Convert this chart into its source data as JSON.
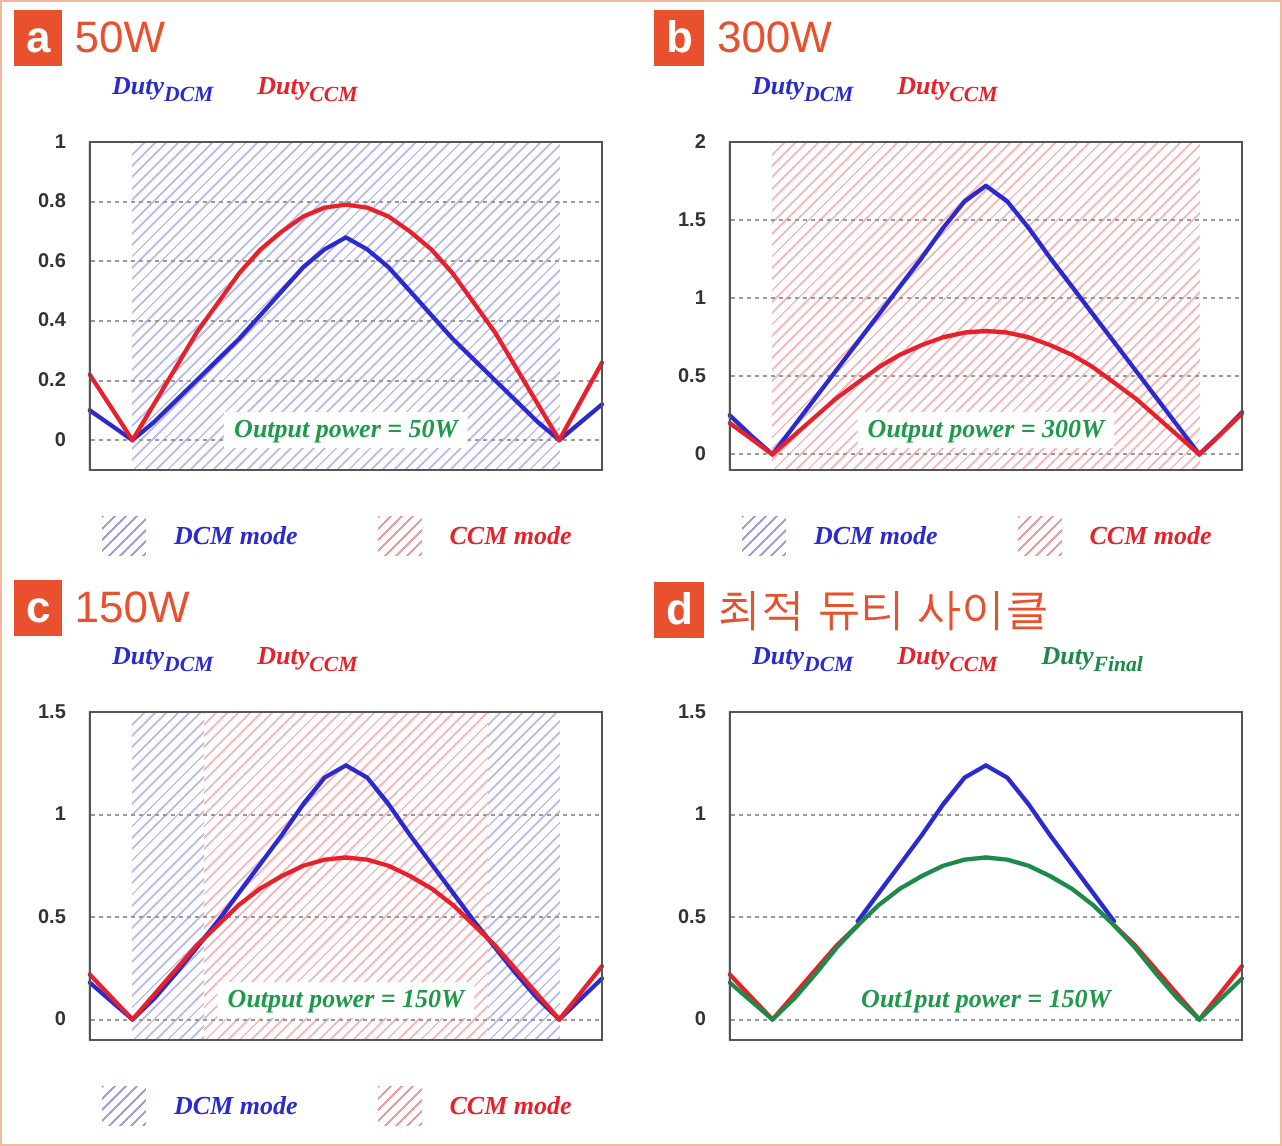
{
  "chart_data": [
    {
      "type": "line",
      "title": "a 50W",
      "categories": [
        null,
        null,
        null,
        null,
        null,
        null,
        null,
        null,
        null,
        null,
        null,
        null,
        null,
        null,
        null,
        null,
        null,
        null,
        null,
        null,
        null,
        null,
        null,
        null,
        null
      ],
      "ylim": [
        -0.1,
        1
      ],
      "yticks": [
        0,
        0.2,
        0.4,
        0.6,
        0.8,
        1
      ],
      "tick_labels": "y",
      "grid": "y",
      "marker": "none",
      "line_style": "solid",
      "series": [
        {
          "name": "Duty$_{DCM}$",
          "color": "#2a2ad0",
          "values": [
            0.1,
            0.05,
            0,
            0.06,
            0.13,
            0.2,
            0.27,
            0.34,
            0.42,
            0.5,
            0.58,
            0.64,
            0.68,
            0.64,
            0.58,
            0.5,
            0.42,
            0.34,
            0.27,
            0.2,
            0.13,
            0.06,
            0,
            0.06,
            0.12
          ]
        },
        {
          "name": "Duty$_{CCM}$",
          "color": "#e8202a",
          "values": [
            0.22,
            0.11,
            0,
            0.12,
            0.24,
            0.36,
            0.46,
            0.56,
            0.64,
            0.7,
            0.75,
            0.78,
            0.79,
            0.78,
            0.75,
            0.7,
            0.64,
            0.56,
            0.46,
            0.36,
            0.24,
            0.12,
            0,
            0.13,
            0.26
          ]
        }
      ],
      "annotations": [
        "Output power = 50W",
        "DCM mode",
        "CCM mode"
      ]
    },
    {
      "type": "line",
      "title": "b 300W",
      "categories": [
        null,
        null,
        null,
        null,
        null,
        null,
        null,
        null,
        null,
        null,
        null,
        null,
        null,
        null,
        null,
        null,
        null,
        null,
        null,
        null,
        null,
        null,
        null,
        null,
        null
      ],
      "ylim": [
        -0.1,
        2
      ],
      "yticks": [
        0,
        0.5,
        1,
        1.5,
        2
      ],
      "tick_labels": "y",
      "grid": "y",
      "marker": "none",
      "line_style": "solid",
      "series": [
        {
          "name": "Duty$_{DCM}$",
          "color": "#2a2ad0",
          "values": [
            0.25,
            0.12,
            0,
            0.18,
            0.36,
            0.54,
            0.72,
            0.9,
            1.08,
            1.26,
            1.45,
            1.62,
            1.72,
            1.62,
            1.45,
            1.26,
            1.08,
            0.9,
            0.72,
            0.54,
            0.36,
            0.18,
            0,
            0.13,
            0.27
          ]
        },
        {
          "name": "Duty$_{CCM}$",
          "color": "#e8202a",
          "values": [
            0.2,
            0.1,
            0,
            0.12,
            0.24,
            0.36,
            0.46,
            0.56,
            0.64,
            0.7,
            0.75,
            0.78,
            0.79,
            0.78,
            0.75,
            0.7,
            0.64,
            0.56,
            0.46,
            0.36,
            0.24,
            0.12,
            0,
            0.13,
            0.26
          ]
        }
      ],
      "annotations": [
        "Output power = 300W",
        "DCM mode",
        "CCM mode"
      ]
    },
    {
      "type": "line",
      "title": "c 150W",
      "categories": [
        null,
        null,
        null,
        null,
        null,
        null,
        null,
        null,
        null,
        null,
        null,
        null,
        null,
        null,
        null,
        null,
        null,
        null,
        null,
        null,
        null,
        null,
        null,
        null,
        null
      ],
      "ylim": [
        -0.1,
        1.5
      ],
      "yticks": [
        0,
        0.5,
        1,
        1.5
      ],
      "tick_labels": "y",
      "grid": "y",
      "marker": "none",
      "line_style": "solid",
      "series": [
        {
          "name": "Duty$_{DCM}$",
          "color": "#2a2ad0",
          "values": [
            0.18,
            0.09,
            0,
            0.1,
            0.22,
            0.35,
            0.48,
            0.62,
            0.76,
            0.9,
            1.05,
            1.18,
            1.24,
            1.18,
            1.05,
            0.9,
            0.76,
            0.62,
            0.48,
            0.35,
            0.22,
            0.1,
            0,
            0.1,
            0.2
          ]
        },
        {
          "name": "Duty$_{CCM}$",
          "color": "#e8202a",
          "values": [
            0.22,
            0.11,
            0,
            0.12,
            0.24,
            0.36,
            0.46,
            0.56,
            0.64,
            0.7,
            0.75,
            0.78,
            0.79,
            0.78,
            0.75,
            0.7,
            0.64,
            0.56,
            0.46,
            0.36,
            0.24,
            0.12,
            0,
            0.13,
            0.26
          ]
        }
      ],
      "annotations": [
        "Output power = 150W",
        "DCM mode",
        "CCM mode"
      ]
    },
    {
      "type": "line",
      "title": "d 최적 듀티 사이클",
      "categories": [
        null,
        null,
        null,
        null,
        null,
        null,
        null,
        null,
        null,
        null,
        null,
        null,
        null,
        null,
        null,
        null,
        null,
        null,
        null,
        null,
        null,
        null,
        null,
        null,
        null
      ],
      "ylim": [
        -0.1,
        1.5
      ],
      "yticks": [
        0,
        0.5,
        1,
        1.5
      ],
      "tick_labels": "y",
      "grid": "y",
      "marker": "none",
      "line_style": "solid",
      "series": [
        {
          "name": "Duty$_{DCM}$",
          "color": "#2a2ad0",
          "values": [
            null,
            null,
            null,
            null,
            null,
            null,
            0.48,
            0.62,
            0.76,
            0.9,
            1.05,
            1.18,
            1.24,
            1.18,
            1.05,
            0.9,
            0.76,
            0.62,
            0.48,
            null,
            null,
            null,
            null,
            null,
            null
          ]
        },
        {
          "name": "Duty$_{CCM}$",
          "color": "#e8202a",
          "values": [
            0.22,
            0.11,
            0,
            0.12,
            0.24,
            0.36,
            0.46,
            null,
            null,
            null,
            null,
            null,
            null,
            null,
            null,
            null,
            null,
            null,
            0.46,
            0.36,
            0.24,
            0.12,
            0,
            0.13,
            0.26
          ]
        },
        {
          "name": "Duty$_{Final}$",
          "color": "#1e8a4a",
          "values": [
            0.18,
            0.09,
            0,
            0.1,
            0.22,
            0.35,
            0.46,
            0.56,
            0.64,
            0.7,
            0.75,
            0.78,
            0.79,
            0.78,
            0.75,
            0.7,
            0.64,
            0.56,
            0.46,
            0.35,
            0.22,
            0.1,
            0,
            0.1,
            0.2
          ]
        }
      ],
      "annotations": [
        "Out1put power = 150W"
      ]
    }
  ]
}
